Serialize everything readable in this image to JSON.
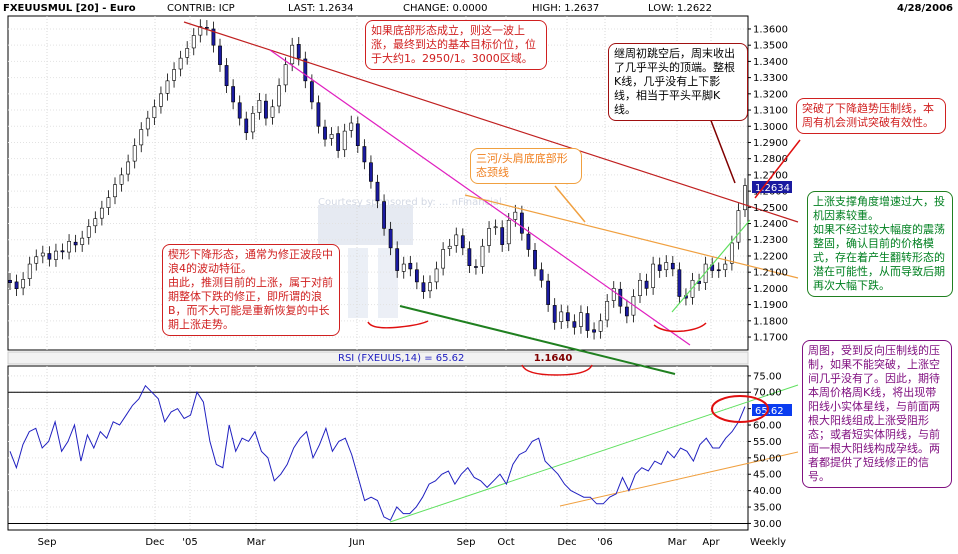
{
  "header": {
    "symbol": "FXEUUSMUL [20] - Euro",
    "contrib": "CONTRIB: ICP",
    "last": "LAST: 1.2634",
    "change": "CHANGE: 0.0000",
    "high": "HIGH: 1.2637",
    "low": "LOW: 1.2622",
    "date": "4/28/2006"
  },
  "watermark": "Courtesy sponsored by: ... nFinancial",
  "labels": {
    "rsi_title": "RSI (FXEUUS,14) = 65.62",
    "low_mark": "1.1640",
    "price_last": "1.2634",
    "rsi_last": "65.62"
  },
  "annotations": {
    "target": "如果底部形态成立，则这一波上涨，最终到达的基本目标价位，位于大约1。2950/1。3000区域。",
    "gap": "继周初跳空后，周末收出了几乎平头的顶端。整根K线，几乎没有上下影线，相当于平头平脚K线。",
    "breakout": "突破了下降趋势压制线，本周有机会测试突破有效性。",
    "neckline": "三河/头肩底底部形态颈线",
    "support": "上涨支撑角度增速过大，投机因素较重。\n如果不经过较大幅度的震荡整固，确认目前的价格模式，存在着产生翻转形态的潜在可能性，从而导致后期再次大幅下跌。",
    "wedge": "楔形下降形态，通常为修正波段中浪4的波动特征。\n由此，推测目前的上涨，属于对前期整体下跌的修正，即所谓的浪B，而不大可能是重新恢复的中长期上涨走势。",
    "rsi_note": "周图，受到反向压制线的压制，如果不能突破，上涨空间几乎没有了。因此，期待本周价格周K线，将出现带阳线小实体星线，与前面两根大阳线组成上涨受阻形态；或者短实体阴线，与前面一根大阳线构成孕线。两者都提供了短线修正的信号。"
  },
  "colors": {
    "up": "#ffffff",
    "down": "#1a1aa0",
    "rsi_line": "#2020c0",
    "red_line": "#c02020",
    "magenta_line": "#e020c0",
    "orange_line": "#f0a040",
    "green_line": "#208020",
    "light_green_line": "#60e060"
  },
  "chart_data": [
    {
      "type": "candlestick",
      "title": "FXEUUSMUL [20] - Euro",
      "frequency": "Weekly",
      "x_tick_labels": [
        "Sep",
        "Dec",
        "'05",
        "Mar",
        "Jun",
        "Sep",
        "Oct",
        "Dec",
        "'06",
        "Mar",
        "Apr",
        "Weekly"
      ],
      "y_tick_labels": [
        "1.1700",
        "1.1800",
        "1.1900",
        "1.2000",
        "1.2100",
        "1.2200",
        "1.2300",
        "1.2400",
        "1.2500",
        "1.2600",
        "1.2700",
        "1.2800",
        "1.2900",
        "1.3000",
        "1.3100",
        "1.3200",
        "1.3300",
        "1.3400",
        "1.3500",
        "1.3600"
      ],
      "y_ticks": [
        1.17,
        1.18,
        1.19,
        1.2,
        1.21,
        1.22,
        1.23,
        1.24,
        1.25,
        1.26,
        1.27,
        1.28,
        1.29,
        1.3,
        1.31,
        1.32,
        1.33,
        1.34,
        1.35,
        1.36
      ],
      "ylim": [
        1.162,
        1.368
      ],
      "last_value": 1.2634,
      "low_annotation": 1.164,
      "close": [
        1.2035,
        1.1998,
        1.2055,
        1.215,
        1.2195,
        1.2218,
        1.218,
        1.223,
        1.2225,
        1.229,
        1.2268,
        1.231,
        1.2382,
        1.243,
        1.2495,
        1.256,
        1.264,
        1.27,
        1.278,
        1.288,
        1.298,
        1.305,
        1.312,
        1.32,
        1.328,
        1.335,
        1.342,
        1.348,
        1.356,
        1.3615,
        1.3605,
        1.35,
        1.338,
        1.325,
        1.315,
        1.305,
        1.296,
        1.308,
        1.316,
        1.305,
        1.312,
        1.325,
        1.338,
        1.35,
        1.342,
        1.328,
        1.315,
        1.3,
        1.292,
        1.295,
        1.285,
        1.297,
        1.302,
        1.288,
        1.278,
        1.266,
        1.254,
        1.237,
        1.225,
        1.211,
        1.215,
        1.212,
        1.204,
        1.198,
        1.2035,
        1.212,
        1.224,
        1.226,
        1.233,
        1.225,
        1.214,
        1.213,
        1.226,
        1.237,
        1.238,
        1.227,
        1.242,
        1.247,
        1.234,
        1.224,
        1.212,
        1.205,
        1.19,
        1.179,
        1.1855,
        1.18,
        1.176,
        1.185,
        1.174,
        1.173,
        1.18,
        1.192,
        1.2,
        1.189,
        1.183,
        1.195,
        1.205,
        1.2,
        1.215,
        1.211,
        1.216,
        1.212,
        1.195,
        1.194,
        1.205,
        1.203,
        1.215,
        1.211,
        1.211,
        1.215,
        1.228,
        1.248,
        1.2634
      ],
      "open": [
        1.205,
        1.204,
        1.2003,
        1.206,
        1.2155,
        1.22,
        1.2215,
        1.2178,
        1.2232,
        1.2224,
        1.2285,
        1.227,
        1.2315,
        1.2386,
        1.2433,
        1.2498,
        1.2565,
        1.2642,
        1.2705,
        1.2785,
        1.2885,
        1.2983,
        1.3053,
        1.3123,
        1.3203,
        1.3283,
        1.3353,
        1.3425,
        1.3483,
        1.3562,
        1.361,
        1.36,
        1.3495,
        1.3375,
        1.3245,
        1.3145,
        1.3045,
        1.2965,
        1.3085,
        1.3155,
        1.3055,
        1.3125,
        1.3255,
        1.3385,
        1.3505,
        1.3415,
        1.3275,
        1.3145,
        1.2995,
        1.2925,
        1.2955,
        1.2855,
        1.2975,
        1.3015,
        1.2875,
        1.2775,
        1.2655,
        1.2535,
        1.2365,
        1.2245,
        1.2105,
        1.2155,
        1.2115,
        1.2035,
        1.1985,
        1.204,
        1.2125,
        1.2245,
        1.2265,
        1.2325,
        1.2245,
        1.2135,
        1.2135,
        1.2265,
        1.2375,
        1.2375,
        1.2275,
        1.2425,
        1.2465,
        1.2335,
        1.2235,
        1.2115,
        1.2045,
        1.1895,
        1.1795,
        1.185,
        1.1795,
        1.1765,
        1.1845,
        1.1745,
        1.1735,
        1.1805,
        1.1925,
        1.1995,
        1.1885,
        1.1835,
        1.1955,
        1.2045,
        1.2005,
        1.2145,
        1.2115,
        1.2155,
        1.2115,
        1.1955,
        1.1945,
        1.2045,
        1.2035,
        1.2145,
        1.2115,
        1.2115,
        1.2155,
        1.2285,
        1.2485
      ]
    },
    {
      "type": "line",
      "title": "RSI (FXEUUS,14) = 65.62",
      "y_tick_labels": [
        "30.00",
        "35.00",
        "40.00",
        "45.00",
        "50.00",
        "55.00",
        "60.00",
        "65.00",
        "70.00",
        "75.00"
      ],
      "y_ticks": [
        30,
        35,
        40,
        45,
        50,
        55,
        60,
        65,
        70,
        75
      ],
      "ylim": [
        28,
        78
      ],
      "reference_lines": [
        70,
        30
      ],
      "last_value": 65.62,
      "values": [
        52,
        47,
        54,
        58,
        59,
        53,
        55,
        61,
        52,
        55,
        60,
        49,
        57,
        53,
        58,
        56,
        61,
        60,
        63,
        66,
        68,
        72,
        70,
        68,
        61,
        64,
        65,
        62,
        63,
        70,
        67,
        55,
        48,
        47,
        60,
        52,
        56,
        55,
        58,
        52,
        50,
        43,
        45,
        48,
        53,
        56,
        58,
        50,
        54,
        59,
        52,
        55,
        56,
        51,
        44,
        37,
        38,
        37,
        32,
        31,
        35,
        33,
        33,
        35,
        38,
        42,
        43,
        45,
        46,
        42,
        45,
        47,
        44,
        43,
        41,
        43,
        45,
        42,
        48,
        51,
        52,
        55,
        56,
        49,
        47,
        45,
        42,
        40,
        39,
        38,
        38,
        36,
        36,
        38,
        39,
        44,
        40,
        45,
        47,
        46,
        49,
        48,
        52,
        50,
        53,
        52,
        49,
        54,
        56,
        53,
        53,
        56,
        58,
        61,
        65.62
      ]
    }
  ]
}
